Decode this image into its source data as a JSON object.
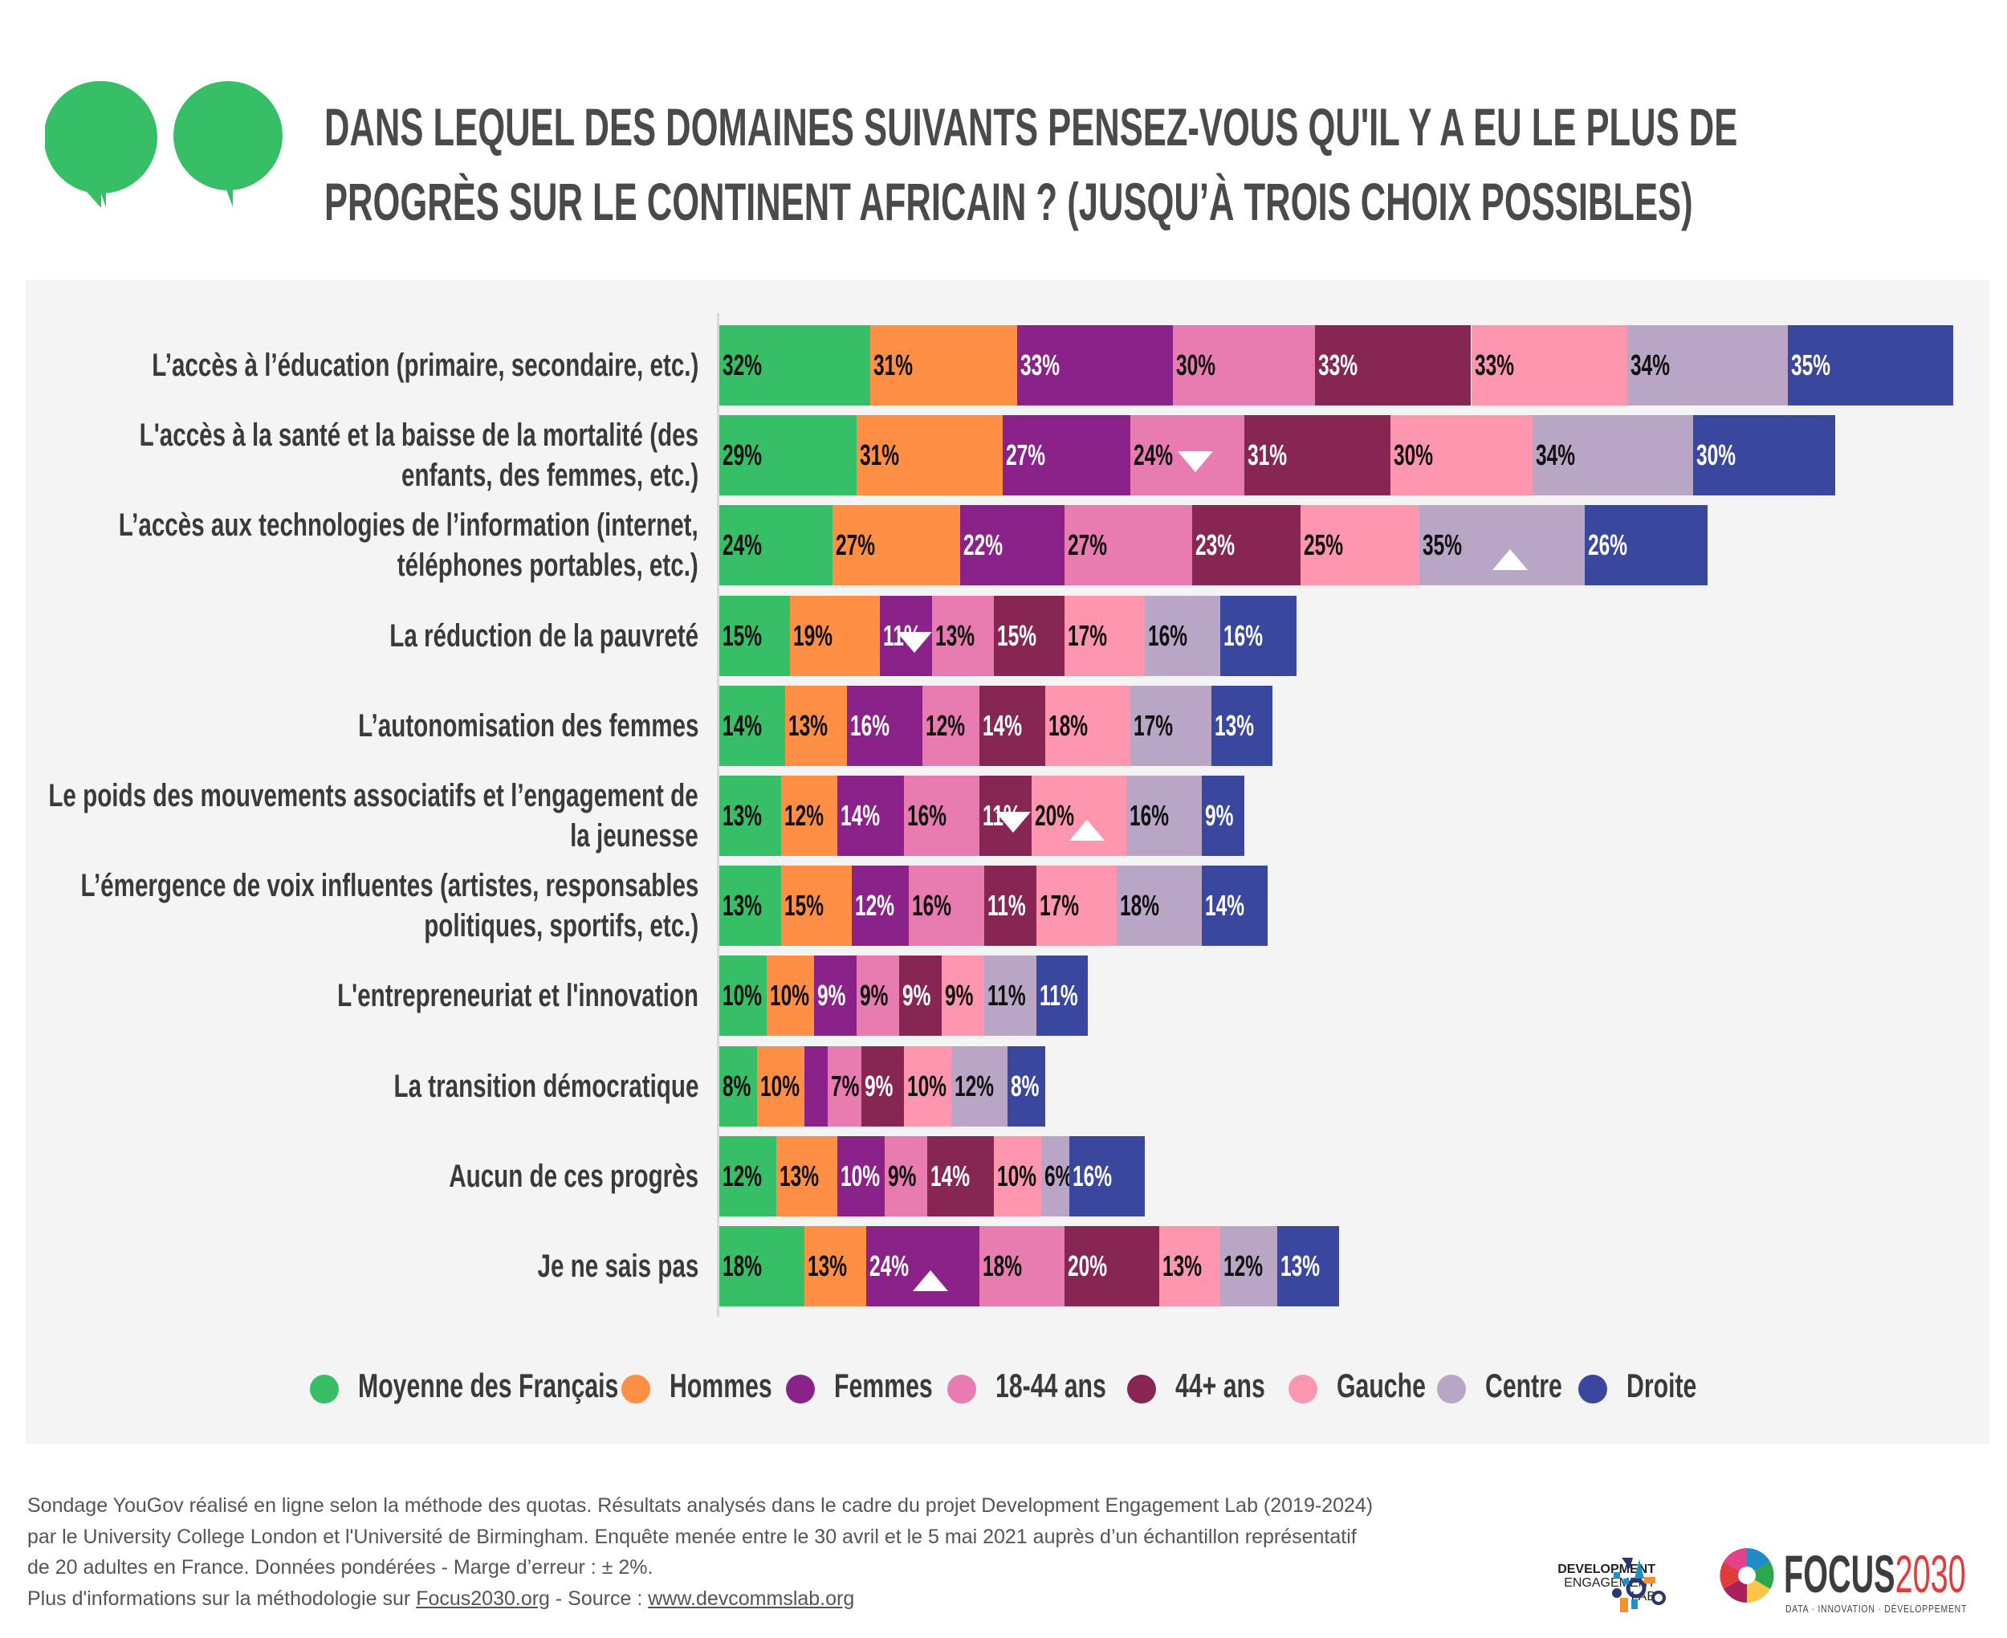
{
  "title": {
    "line1": "DANS LEQUEL DES DOMAINES SUIVANTS PENSEZ-VOUS QU'IL Y A EU LE PLUS DE",
    "line2": "PROGRÈS SUR LE CONTINENT AFRICAIN ? (JUSQU’À TROIS CHOIX POSSIBLES)"
  },
  "quote_icon": "speech-bubbles-icon",
  "accent_color": "#37bf67",
  "chart_data": {
    "type": "bar",
    "orientation": "horizontal",
    "stacked": true,
    "unit": "%",
    "categories": [
      [
        "L’accès à l’éducation (primaire, secondaire, etc.)"
      ],
      [
        "L'accès à la santé et la baisse de la mortalité (des",
        "enfants, des femmes, etc.)"
      ],
      [
        "L’accès aux technologies de l’information (internet,",
        "téléphones portables, etc.)"
      ],
      [
        "La réduction de la pauvreté"
      ],
      [
        "L’autonomisation des femmes"
      ],
      [
        "Le poids des mouvements associatifs et l’engagement de",
        "la jeunesse"
      ],
      [
        "L’émergence de voix influentes (artistes, responsables",
        "politiques, sportifs, etc.)"
      ],
      [
        "L'entrepreneuriat et l'innovation"
      ],
      [
        "La transition démocratique"
      ],
      [
        "Aucun de ces progrès"
      ],
      [
        "Je ne sais pas"
      ]
    ],
    "series": [
      {
        "name": "Moyenne des Français",
        "color": "#37bf67",
        "label_color": "#111111",
        "values": [
          32,
          29,
          24,
          15,
          14,
          13,
          13,
          10,
          8,
          12,
          18
        ]
      },
      {
        "name": "Hommes",
        "color": "#ff8f45",
        "label_color": "#111111",
        "values": [
          31,
          31,
          27,
          19,
          13,
          12,
          15,
          10,
          10,
          13,
          13
        ]
      },
      {
        "name": "Femmes",
        "color": "#8a228a",
        "label_color": "#ffffff",
        "values": [
          33,
          27,
          22,
          11,
          16,
          14,
          12,
          9,
          5,
          10,
          24
        ],
        "unlabeled": [
          8
        ]
      },
      {
        "name": "18-44 ans",
        "color": "#e87cb1",
        "label_color": "#111111",
        "values": [
          30,
          24,
          27,
          13,
          12,
          16,
          16,
          9,
          7,
          9,
          18
        ]
      },
      {
        "name": "44+ ans",
        "color": "#882653",
        "label_color": "#ffffff",
        "values": [
          33,
          31,
          23,
          15,
          14,
          11,
          11,
          9,
          9,
          14,
          20
        ]
      },
      {
        "name": "Gauche",
        "color": "#ff96b0",
        "label_color": "#111111",
        "values": [
          33,
          30,
          25,
          17,
          18,
          20,
          17,
          9,
          10,
          10,
          13
        ]
      },
      {
        "name": "Centre",
        "color": "#b9a6c6",
        "label_color": "#111111",
        "values": [
          34,
          34,
          35,
          16,
          17,
          16,
          18,
          11,
          12,
          6,
          12
        ]
      },
      {
        "name": "Droite",
        "color": "#3a479e",
        "label_color": "#ffffff",
        "values": [
          35,
          30,
          26,
          16,
          13,
          9,
          14,
          11,
          8,
          16,
          13
        ]
      }
    ],
    "arrows": [
      {
        "row": 1,
        "series": 3,
        "direction": "down"
      },
      {
        "row": 2,
        "series": 6,
        "direction": "up"
      },
      {
        "row": 3,
        "series": 2,
        "direction": "down"
      },
      {
        "row": 5,
        "series": 4,
        "direction": "down"
      },
      {
        "row": 5,
        "series": 5,
        "direction": "up"
      },
      {
        "row": 10,
        "series": 2,
        "direction": "up"
      }
    ],
    "legend_position": "bottom",
    "grid": false
  },
  "footer": {
    "line1": "Sondage YouGov réalisé en ligne selon la méthode des quotas. Résultats analysés dans le cadre du projet Development Engagement Lab (2019-2024)",
    "line2": "par le University College London et l'Université de Birmingham. Enquête menée entre le 30 avril et le 5 mai 2021 auprès d’un échantillon représentatif",
    "line3": "de 20 adultes en France. Données pondérées - Marge d’erreur : ± 2%.",
    "line4_prefix": "Plus d'informations sur la méthodologie sur ",
    "link1": "Focus2030.org",
    "line4_mid": " - Source : ",
    "link2": "www.devcommslab.org"
  },
  "logos": {
    "del": [
      "DEVELOPMENT",
      "ENGAGEMENT",
      "LAB"
    ],
    "focus_word": "FOCUS",
    "focus_num": "2030",
    "focus_tagline": "DATA · INNOVATION · DÉVELOPPEMENT"
  }
}
